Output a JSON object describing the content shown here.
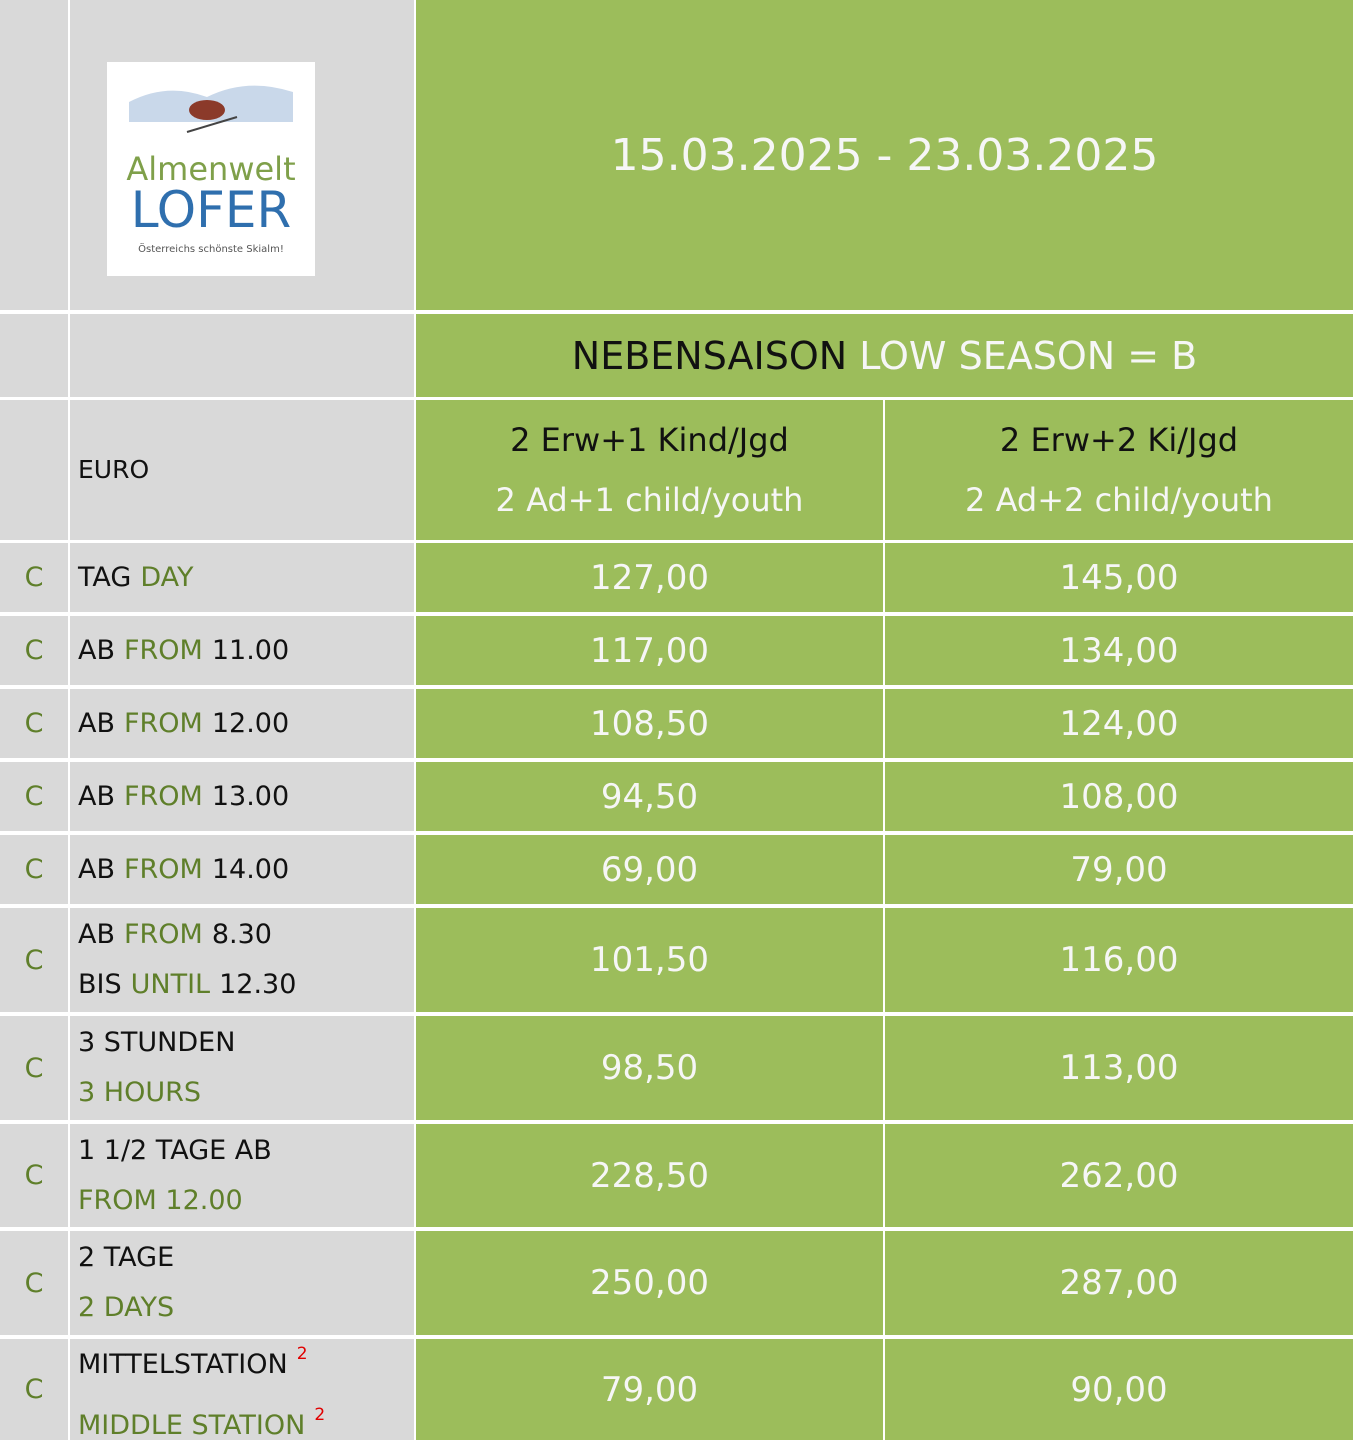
{
  "header": {
    "date_range": "15.03.2025 - 23.03.2025",
    "logo": {
      "line1": "Almenwelt",
      "line2": "LOFER",
      "tagline": "Österreichs schönste Skialm!"
    }
  },
  "season": {
    "de": "NEBENSAISON",
    "en": "LOW SEASON = B"
  },
  "table": {
    "currency": "EURO",
    "columns": [
      {
        "de": "2 Erw+1 Kind/Jgd",
        "en": "2 Ad+1 child/youth"
      },
      {
        "de": "2 Erw+2 Ki/Jgd",
        "en": "2 Ad+2 child/youth"
      }
    ],
    "rows": [
      {
        "code": "C",
        "lines": [
          [
            {
              "text": "TAG",
              "tone": "dark"
            },
            {
              "text": "DAY",
              "tone": "green"
            }
          ]
        ],
        "values": [
          "127,00",
          "145,00"
        ]
      },
      {
        "code": "C",
        "lines": [
          [
            {
              "text": "AB",
              "tone": "dark"
            },
            {
              "text": "FROM",
              "tone": "green"
            },
            {
              "text": "11.00",
              "tone": "dark"
            }
          ]
        ],
        "values": [
          "117,00",
          "134,00"
        ]
      },
      {
        "code": "C",
        "lines": [
          [
            {
              "text": "AB",
              "tone": "dark"
            },
            {
              "text": "FROM",
              "tone": "green"
            },
            {
              "text": "12.00",
              "tone": "dark"
            }
          ]
        ],
        "values": [
          "108,50",
          "124,00"
        ]
      },
      {
        "code": "C",
        "lines": [
          [
            {
              "text": "AB",
              "tone": "dark"
            },
            {
              "text": "FROM",
              "tone": "green"
            },
            {
              "text": "13.00",
              "tone": "dark"
            }
          ]
        ],
        "values": [
          "94,50",
          "108,00"
        ]
      },
      {
        "code": "C",
        "lines": [
          [
            {
              "text": "AB",
              "tone": "dark"
            },
            {
              "text": "FROM",
              "tone": "green"
            },
            {
              "text": "14.00",
              "tone": "dark"
            }
          ]
        ],
        "values": [
          "69,00",
          "79,00"
        ]
      },
      {
        "code": "C",
        "lines": [
          [
            {
              "text": "AB",
              "tone": "dark"
            },
            {
              "text": "FROM",
              "tone": "green"
            },
            {
              "text": "8.30",
              "tone": "dark"
            }
          ],
          [
            {
              "text": "BIS",
              "tone": "dark"
            },
            {
              "text": "UNTIL",
              "tone": "green"
            },
            {
              "text": "12.30",
              "tone": "dark"
            }
          ]
        ],
        "values": [
          "101,50",
          "116,00"
        ]
      },
      {
        "code": "C",
        "lines": [
          [
            {
              "text": "3 STUNDEN",
              "tone": "dark"
            }
          ],
          [
            {
              "text": "3 HOURS",
              "tone": "green"
            }
          ]
        ],
        "values": [
          "98,50",
          "113,00"
        ]
      },
      {
        "code": "C",
        "lines": [
          [
            {
              "text": "1 1/2 TAGE AB",
              "tone": "dark"
            }
          ],
          [
            {
              "text": "FROM 12.00",
              "tone": "green"
            }
          ]
        ],
        "values": [
          "228,50",
          "262,00"
        ]
      },
      {
        "code": "C",
        "lines": [
          [
            {
              "text": "2 TAGE",
              "tone": "dark"
            }
          ],
          [
            {
              "text": "2 DAYS",
              "tone": "green"
            }
          ]
        ],
        "values": [
          "250,00",
          "287,00"
        ]
      },
      {
        "code": "C",
        "lines": [
          [
            {
              "text": "MITTELSTATION",
              "tone": "dark"
            },
            {
              "text": "2",
              "tone": "note"
            }
          ],
          [
            {
              "text": "MIDDLE STATION",
              "tone": "green"
            },
            {
              "text": "2",
              "tone": "note"
            }
          ]
        ],
        "values": [
          "79,00",
          "90,00"
        ]
      }
    ]
  }
}
